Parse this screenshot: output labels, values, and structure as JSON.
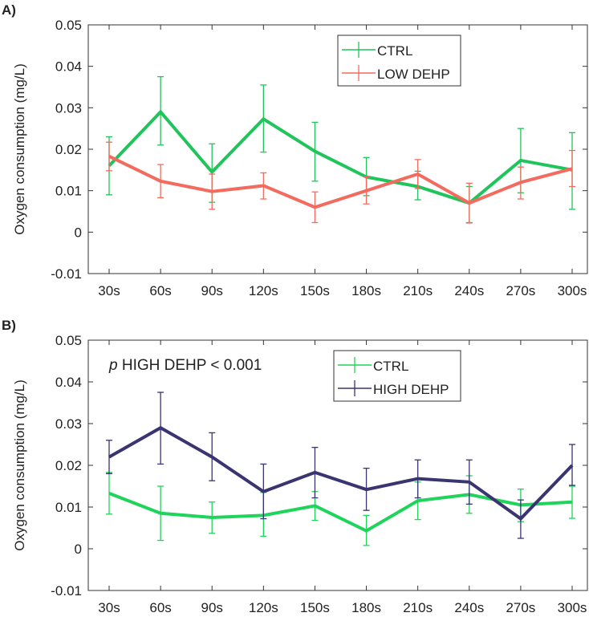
{
  "chart_data": [
    {
      "type": "line",
      "panel_label": "A)",
      "ylabel": "Oxygen consumption (mg/L)",
      "xlabel": "",
      "categories": [
        "30s",
        "60s",
        "90s",
        "120s",
        "150s",
        "180s",
        "210s",
        "240s",
        "270s",
        "300s"
      ],
      "ylim": [
        -0.01,
        0.05
      ],
      "yticks": [
        "-0.01",
        "0",
        "0.01",
        "0.02",
        "0.03",
        "0.04",
        "0.05"
      ],
      "legend": "top-right",
      "annotation": "",
      "series": [
        {
          "name": "CTRL",
          "color": "#1fc45a",
          "values": [
            0.016,
            0.029,
            0.0145,
            0.0273,
            0.0195,
            0.0133,
            0.011,
            0.007,
            0.0173,
            0.015
          ],
          "lower": [
            0.009,
            0.021,
            0.0072,
            0.0193,
            0.0123,
            0.0088,
            0.0078,
            0.0023,
            0.0095,
            0.0055
          ],
          "upper": [
            0.023,
            0.0375,
            0.0213,
            0.0355,
            0.0265,
            0.018,
            0.0147,
            0.011,
            0.025,
            0.024
          ]
        },
        {
          "name": "LOW DEHP",
          "color": "#f26b5e",
          "values": [
            0.0183,
            0.0123,
            0.0098,
            0.0112,
            0.006,
            0.01,
            0.014,
            0.007,
            0.012,
            0.0153
          ],
          "lower": [
            0.0148,
            0.0083,
            0.0055,
            0.008,
            0.0023,
            0.0068,
            0.0105,
            0.0022,
            0.008,
            0.011
          ],
          "upper": [
            0.0217,
            0.0163,
            0.014,
            0.0143,
            0.0097,
            0.0133,
            0.0175,
            0.0118,
            0.0157,
            0.0197
          ]
        }
      ]
    },
    {
      "type": "line",
      "panel_label": "B)",
      "ylabel": "Oxygen consumption (mg/L)",
      "xlabel": "",
      "categories": [
        "30s",
        "60s",
        "90s",
        "120s",
        "150s",
        "180s",
        "210s",
        "240s",
        "270s",
        "300s"
      ],
      "ylim": [
        -0.01,
        0.05
      ],
      "yticks": [
        "-0.01",
        "0",
        "0.01",
        "0.02",
        "0.03",
        "0.04",
        "0.05"
      ],
      "legend": "top-right",
      "annotation": {
        "italic": "p",
        "text": " HIGH DEHP < 0.001"
      },
      "series": [
        {
          "name": "CTRL",
          "color": "#1fd45a",
          "values": [
            0.0133,
            0.0085,
            0.0075,
            0.008,
            0.0103,
            0.0043,
            0.0115,
            0.013,
            0.0105,
            0.0112
          ],
          "lower": [
            0.0083,
            0.002,
            0.0037,
            0.003,
            0.0068,
            0.0008,
            0.007,
            0.0085,
            0.0065,
            0.0073
          ],
          "upper": [
            0.0183,
            0.015,
            0.0112,
            0.0135,
            0.0137,
            0.008,
            0.016,
            0.0175,
            0.0143,
            0.015
          ]
        },
        {
          "name": "HIGH DEHP",
          "color": "#3a3470",
          "values": [
            0.022,
            0.029,
            0.022,
            0.0137,
            0.0183,
            0.0142,
            0.0168,
            0.016,
            0.0072,
            0.02
          ],
          "lower": [
            0.018,
            0.0203,
            0.0163,
            0.0072,
            0.0122,
            0.0092,
            0.0122,
            0.0107,
            0.0025,
            0.0152
          ],
          "upper": [
            0.026,
            0.0375,
            0.0278,
            0.0203,
            0.0243,
            0.0193,
            0.0213,
            0.0213,
            0.0117,
            0.025
          ]
        }
      ]
    }
  ]
}
